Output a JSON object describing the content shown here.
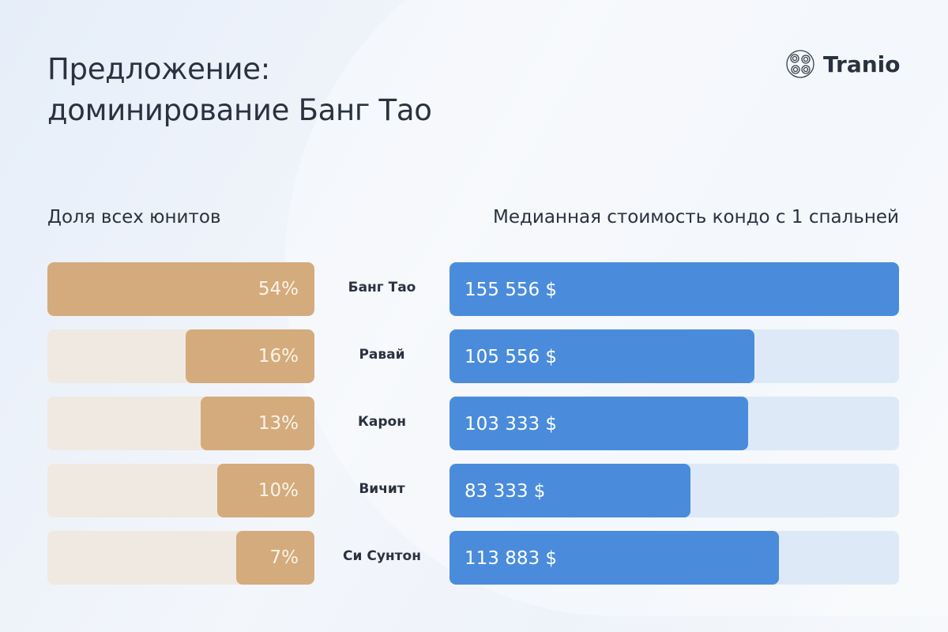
{
  "title_line1": "Предложение:",
  "title_line2": "доминирование Банг Тао",
  "logo": "Tranio",
  "chart_data": [
    {
      "type": "bar",
      "orientation": "horizontal",
      "title": "Доля всех юнитов",
      "categories": [
        "Банг Тао",
        "Равай",
        "Карон",
        "Вичит",
        "Си Сунтон"
      ],
      "values": [
        54,
        16,
        13,
        10,
        7
      ],
      "labels": [
        "54%",
        "16%",
        "13%",
        "10%",
        "7%"
      ],
      "unit": "%",
      "color": "#d4ab7c",
      "track_color": "#efe9e2"
    },
    {
      "type": "bar",
      "orientation": "horizontal",
      "title": "Медианная стоимость кондо с 1 спальней",
      "categories": [
        "Банг Тао",
        "Равай",
        "Карон",
        "Вичит",
        "Си Сунтон"
      ],
      "values": [
        155556,
        105556,
        103333,
        83333,
        113883
      ],
      "labels": [
        "155 556 $",
        "105 556 $",
        "103 333 $",
        "83 333 $",
        "113 883 $"
      ],
      "unit": "$",
      "color": "#4a8cdb",
      "track_color": "#dde9f7"
    }
  ]
}
